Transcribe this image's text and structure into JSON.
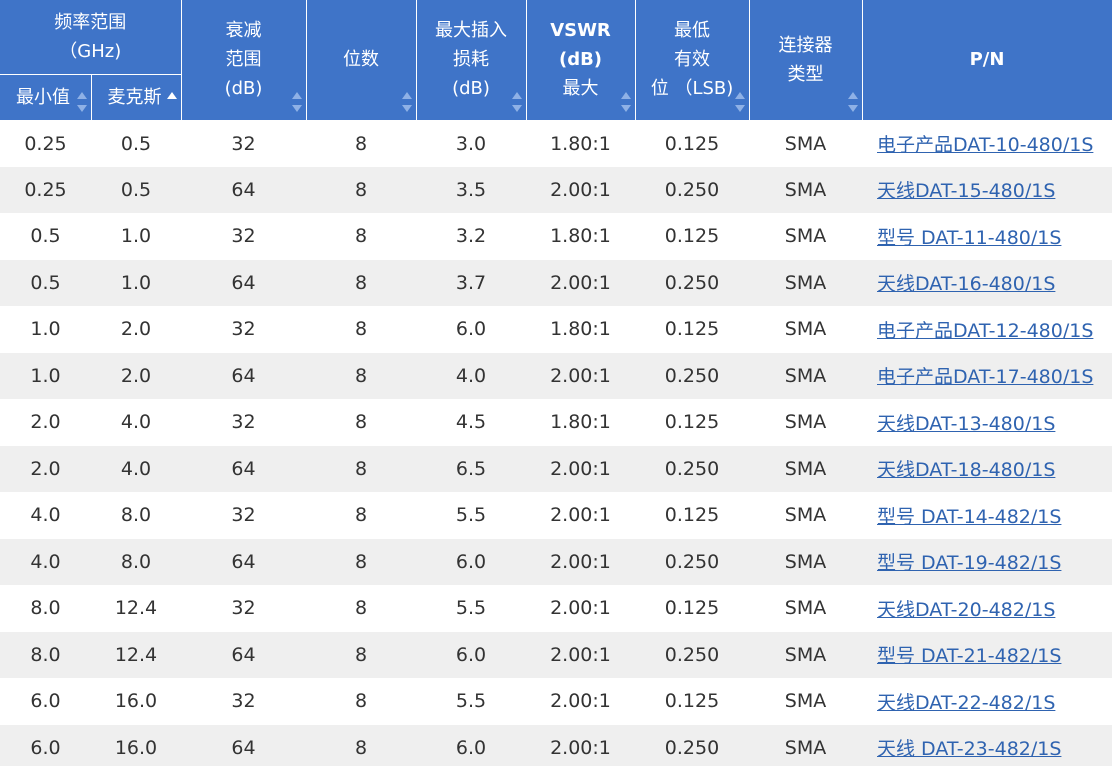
{
  "table": {
    "headers": {
      "freq_range": [
        "频率范围",
        "（GHz)"
      ],
      "freq_min": "最小值",
      "freq_max": "麦克斯",
      "atten_range": [
        "衰减",
        "范围",
        "(dB)"
      ],
      "bits": "位数",
      "insertion_loss": [
        "最大插入",
        "损耗",
        "(dB)"
      ],
      "vswr": [
        "VSWR",
        "(dB)",
        "最大"
      ],
      "min_lsb": [
        "最低",
        "有效",
        "位 （LSB)"
      ],
      "connector": [
        "连接器",
        "类型"
      ],
      "pn": "P/N"
    },
    "rows": [
      {
        "min": "0.25",
        "max": "0.5",
        "atten": "32",
        "bits": "8",
        "il": "3.0",
        "vswr": "1.80:1",
        "lsb": "0.125",
        "conn": "SMA",
        "pn": "电子产品DAT-10-480/1S"
      },
      {
        "min": "0.25",
        "max": "0.5",
        "atten": "64",
        "bits": "8",
        "il": "3.5",
        "vswr": "2.00:1",
        "lsb": "0.250",
        "conn": "SMA",
        "pn": "天线DAT-15-480/1S"
      },
      {
        "min": "0.5",
        "max": "1.0",
        "atten": "32",
        "bits": "8",
        "il": "3.2",
        "vswr": "1.80:1",
        "lsb": "0.125",
        "conn": "SMA",
        "pn": "型号 DAT-11-480/1S"
      },
      {
        "min": "0.5",
        "max": "1.0",
        "atten": "64",
        "bits": "8",
        "il": "3.7",
        "vswr": "2.00:1",
        "lsb": "0.250",
        "conn": "SMA",
        "pn": "天线DAT-16-480/1S"
      },
      {
        "min": "1.0",
        "max": "2.0",
        "atten": "32",
        "bits": "8",
        "il": "6.0",
        "vswr": "1.80:1",
        "lsb": "0.125",
        "conn": "SMA",
        "pn": "电子产品DAT-12-480/1S"
      },
      {
        "min": "1.0",
        "max": "2.0",
        "atten": "64",
        "bits": "8",
        "il": "4.0",
        "vswr": "2.00:1",
        "lsb": "0.250",
        "conn": "SMA",
        "pn": "电子产品DAT-17-480/1S"
      },
      {
        "min": "2.0",
        "max": "4.0",
        "atten": "32",
        "bits": "8",
        "il": "4.5",
        "vswr": "1.80:1",
        "lsb": "0.125",
        "conn": "SMA",
        "pn": "天线DAT-13-480/1S"
      },
      {
        "min": "2.0",
        "max": "4.0",
        "atten": "64",
        "bits": "8",
        "il": "6.5",
        "vswr": "2.00:1",
        "lsb": "0.250",
        "conn": "SMA",
        "pn": "天线DAT-18-480/1S"
      },
      {
        "min": "4.0",
        "max": "8.0",
        "atten": "32",
        "bits": "8",
        "il": "5.5",
        "vswr": "2.00:1",
        "lsb": "0.125",
        "conn": "SMA",
        "pn": "型号 DAT-14-482/1S"
      },
      {
        "min": "4.0",
        "max": "8.0",
        "atten": "64",
        "bits": "8",
        "il": "6.0",
        "vswr": "2.00:1",
        "lsb": "0.250",
        "conn": "SMA",
        "pn": "型号 DAT-19-482/1S"
      },
      {
        "min": "8.0",
        "max": "12.4",
        "atten": "32",
        "bits": "8",
        "il": "5.5",
        "vswr": "2.00:1",
        "lsb": "0.125",
        "conn": "SMA",
        "pn": "天线DAT-20-482/1S"
      },
      {
        "min": "8.0",
        "max": "12.4",
        "atten": "64",
        "bits": "8",
        "il": "6.0",
        "vswr": "2.00:1",
        "lsb": "0.250",
        "conn": "SMA",
        "pn": "型号 DAT-21-482/1S"
      },
      {
        "min": "6.0",
        "max": "16.0",
        "atten": "32",
        "bits": "8",
        "il": "5.5",
        "vswr": "2.00:1",
        "lsb": "0.125",
        "conn": "SMA",
        "pn": "天线DAT-22-482/1S"
      },
      {
        "min": "6.0",
        "max": "16.0",
        "atten": "64",
        "bits": "8",
        "il": "6.0",
        "vswr": "2.00:1",
        "lsb": "0.250",
        "conn": "SMA",
        "pn": "天线 DAT-23-482/1S"
      }
    ]
  },
  "sort_state": {
    "active_column": "freq_max",
    "direction": "ascending"
  },
  "colors": {
    "header_bg": "#3f74c8",
    "link": "#2f63b0",
    "stripe": "#efefef"
  }
}
